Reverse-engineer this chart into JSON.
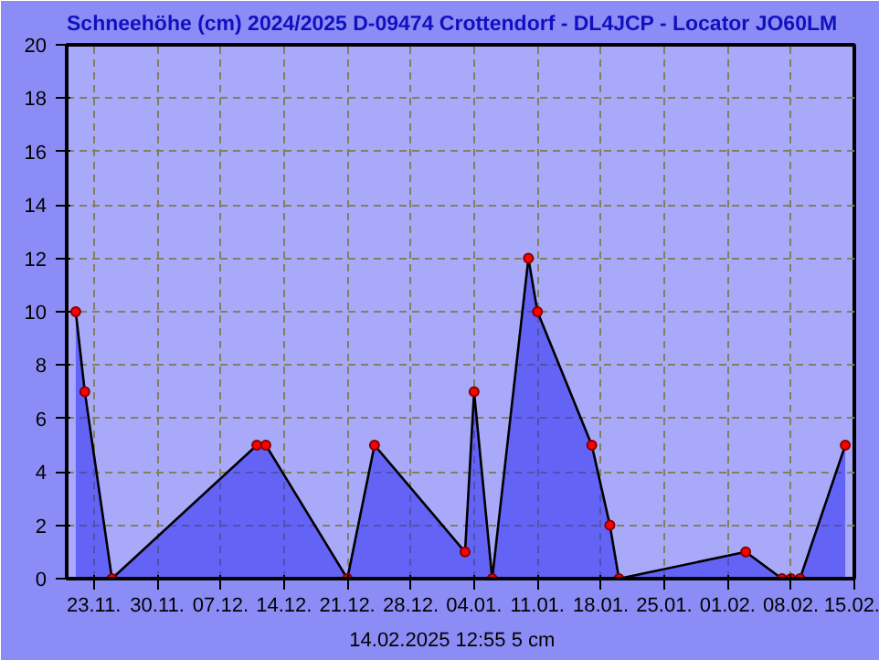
{
  "chart_data": {
    "type": "area",
    "title": "Schneehöhe (cm)  2024/2025      D-09474 Crottendorf - DL4JCP - Locator JO60LM",
    "x": [
      "2024-11-21",
      "2024-11-22",
      "2024-11-25",
      "2024-12-11",
      "2024-12-12",
      "2024-12-21",
      "2024-12-24",
      "2025-01-03",
      "2025-01-04",
      "2025-01-06",
      "2025-01-10",
      "2025-01-11",
      "2025-01-17",
      "2025-01-19",
      "2025-01-20",
      "2025-02-03",
      "2025-02-07",
      "2025-02-08",
      "2025-02-09",
      "2025-02-14"
    ],
    "series": [
      {
        "color": "#2a2af0",
        "values": [
          10,
          7,
          0,
          5,
          5,
          0,
          5,
          1,
          7,
          0,
          12,
          10,
          5,
          2,
          0,
          1,
          0,
          0,
          0,
          5
        ]
      }
    ],
    "xlim": [
      "2024-11-20",
      "2025-02-15"
    ],
    "xticks": [
      {
        "value": "2024-11-23",
        "label": "23.11."
      },
      {
        "value": "2024-11-30",
        "label": "30.11."
      },
      {
        "value": "2024-12-07",
        "label": "07.12."
      },
      {
        "value": "2024-12-14",
        "label": "14.12."
      },
      {
        "value": "2024-12-21",
        "label": "21.12."
      },
      {
        "value": "2024-12-28",
        "label": "28.12."
      },
      {
        "value": "2025-01-04",
        "label": "04.01."
      },
      {
        "value": "2025-01-11",
        "label": "11.01."
      },
      {
        "value": "2025-01-18",
        "label": "18.01."
      },
      {
        "value": "2025-01-25",
        "label": "25.01."
      },
      {
        "value": "2025-02-01",
        "label": "01.02."
      },
      {
        "value": "2025-02-08",
        "label": "08.02."
      },
      {
        "value": "2025-02-15",
        "label": "15.02."
      }
    ],
    "ylim": [
      0,
      20
    ],
    "yticks": [
      0,
      2,
      4,
      6,
      8,
      10,
      12,
      14,
      16,
      18,
      20
    ],
    "grid": true,
    "marker": "circle",
    "annotations": [
      "14.02.2025  12:55   5 cm"
    ]
  }
}
